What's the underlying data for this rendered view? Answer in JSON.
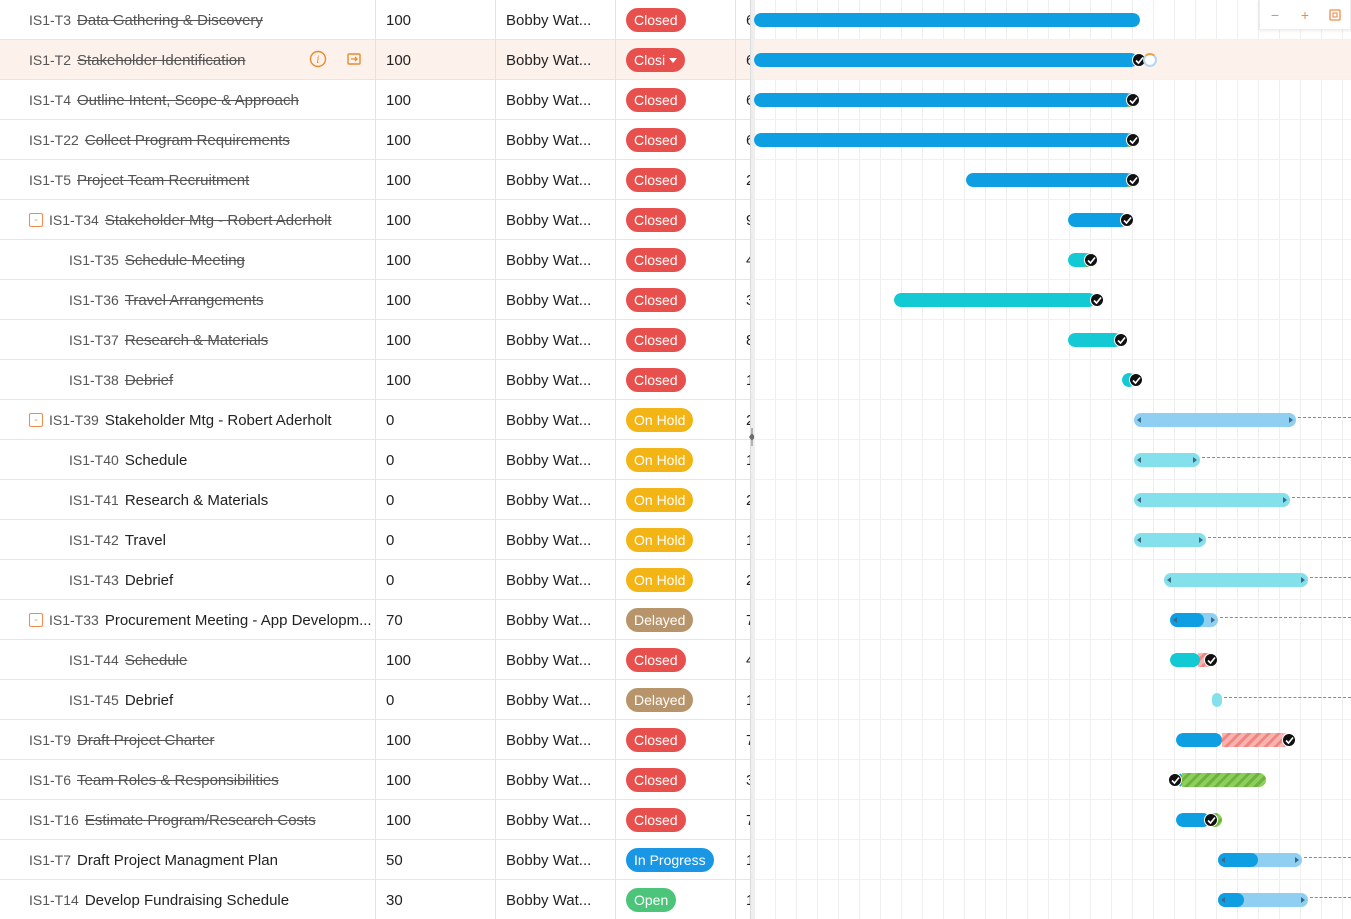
{
  "colors": {
    "closed": "#e8504e",
    "onhold": "#f3b416",
    "delayed": "#b8946a",
    "inprogress": "#1a97e4",
    "open": "#4cc47a",
    "bar_blue": "#0e9ee2",
    "bar_teal": "#13c9d4",
    "bar_light_blue": "#8fd0f2",
    "bar_light_teal": "#84e0ea"
  },
  "zoom": {
    "minus": "−",
    "plus": "+",
    "fit_icon": "fit-icon"
  },
  "tasks": [
    {
      "id": "IS1-T3",
      "name": "Data Gathering & Discovery",
      "pct": "100",
      "owner": "Bobby Wat...",
      "status": "Closed",
      "extra": "6",
      "done": true,
      "level": 0
    },
    {
      "id": "IS1-T2",
      "name": "Stakeholder Identification",
      "pct": "100",
      "owner": "Bobby Wat...",
      "status": "Closed",
      "extra": "6",
      "done": true,
      "level": 0
    },
    {
      "id": "IS1-T4",
      "name": "Outline Intent, Scope & Approach",
      "pct": "100",
      "owner": "Bobby Wat...",
      "status": "Closed",
      "extra": "6",
      "done": true,
      "level": 0
    },
    {
      "id": "IS1-T22",
      "name": "Collect Program Requirements",
      "pct": "100",
      "owner": "Bobby Wat...",
      "status": "Closed",
      "extra": "6",
      "done": true,
      "level": 0
    },
    {
      "id": "IS1-T5",
      "name": "Project Team Recruitment",
      "pct": "100",
      "owner": "Bobby Wat...",
      "status": "Closed",
      "extra": "2",
      "done": true,
      "level": 0
    },
    {
      "id": "IS1-T34",
      "name": "Stakeholder Mtg - Robert Aderholt",
      "pct": "100",
      "owner": "Bobby Wat...",
      "status": "Closed",
      "extra": "9",
      "done": true,
      "level": 0,
      "parent": true
    },
    {
      "id": "IS1-T35",
      "name": "Schedule Meeting",
      "pct": "100",
      "owner": "Bobby Wat...",
      "status": "Closed",
      "extra": "4",
      "done": true,
      "level": 1
    },
    {
      "id": "IS1-T36",
      "name": "Travel Arrangements",
      "pct": "100",
      "owner": "Bobby Wat...",
      "status": "Closed",
      "extra": "3",
      "done": true,
      "level": 1
    },
    {
      "id": "IS1-T37",
      "name": "Research & Materials",
      "pct": "100",
      "owner": "Bobby Wat...",
      "status": "Closed",
      "extra": "8",
      "done": true,
      "level": 1
    },
    {
      "id": "IS1-T38",
      "name": "Debrief",
      "pct": "100",
      "owner": "Bobby Wat...",
      "status": "Closed",
      "extra": "1",
      "done": true,
      "level": 1
    },
    {
      "id": "IS1-T39",
      "name": "Stakeholder Mtg - Robert Aderholt",
      "pct": "0",
      "owner": "Bobby Wat...",
      "status": "On Hold",
      "extra": "2",
      "done": false,
      "level": 0,
      "parent": true
    },
    {
      "id": "IS1-T40",
      "name": "Schedule",
      "pct": "0",
      "owner": "Bobby Wat...",
      "status": "On Hold",
      "extra": "1",
      "done": false,
      "level": 1
    },
    {
      "id": "IS1-T41",
      "name": "Research & Materials",
      "pct": "0",
      "owner": "Bobby Wat...",
      "status": "On Hold",
      "extra": "2",
      "done": false,
      "level": 1
    },
    {
      "id": "IS1-T42",
      "name": "Travel",
      "pct": "0",
      "owner": "Bobby Wat...",
      "status": "On Hold",
      "extra": "1",
      "done": false,
      "level": 1
    },
    {
      "id": "IS1-T43",
      "name": "Debrief",
      "pct": "0",
      "owner": "Bobby Wat...",
      "status": "On Hold",
      "extra": "2",
      "done": false,
      "level": 1
    },
    {
      "id": "IS1-T33",
      "name": "Procurement Meeting - App Developm...",
      "pct": "70",
      "owner": "Bobby Wat...",
      "status": "Delayed",
      "extra": "7",
      "done": false,
      "level": 0,
      "parent": true
    },
    {
      "id": "IS1-T44",
      "name": "Schedule",
      "pct": "100",
      "owner": "Bobby Wat...",
      "status": "Closed",
      "extra": "4",
      "done": true,
      "level": 1
    },
    {
      "id": "IS1-T45",
      "name": "Debrief",
      "pct": "0",
      "owner": "Bobby Wat...",
      "status": "Delayed",
      "extra": "1",
      "done": false,
      "level": 1
    },
    {
      "id": "IS1-T9",
      "name": "Draft Project Charter",
      "pct": "100",
      "owner": "Bobby Wat...",
      "status": "Closed",
      "extra": "7",
      "done": true,
      "level": 0
    },
    {
      "id": "IS1-T6",
      "name": "Team Roles & Responsibilities",
      "pct": "100",
      "owner": "Bobby Wat...",
      "status": "Closed",
      "extra": "3",
      "done": true,
      "level": 0
    },
    {
      "id": "IS1-T16",
      "name": "Estimate Program/Research Costs",
      "pct": "100",
      "owner": "Bobby Wat...",
      "status": "Closed",
      "extra": "7",
      "done": true,
      "level": 0
    },
    {
      "id": "IS1-T7",
      "name": "Draft Project Managment Plan",
      "pct": "50",
      "owner": "Bobby Wat...",
      "status": "In Progress",
      "extra": "1",
      "done": false,
      "level": 0
    },
    {
      "id": "IS1-T14",
      "name": "Develop Fundraising Schedule",
      "pct": "30",
      "owner": "Bobby Wat...",
      "status": "Open",
      "extra": "1",
      "done": false,
      "level": 0
    }
  ],
  "status_dropdown_row": "IS1-T2",
  "status_dropdown_label": "Closi"
}
